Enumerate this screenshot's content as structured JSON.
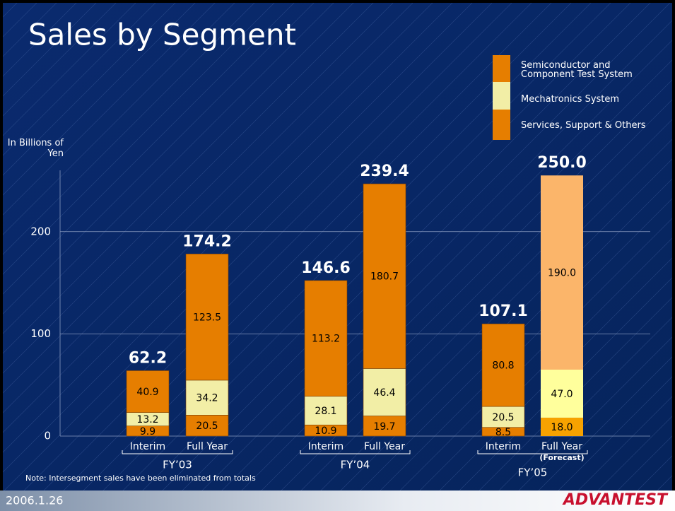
{
  "chart_data": {
    "type": "bar",
    "stacked": true,
    "title": "Sales by Segment",
    "ylabel": "In Billions of Yen",
    "categories": [
      "Interim",
      "Full Year",
      "Interim",
      "Full Year",
      "Interim",
      "Full Year"
    ],
    "groups": [
      "FY’03",
      "FY’04",
      "FY’05"
    ],
    "forecast_label": "(Forecast)",
    "series": [
      {
        "name": "Services, Support & Others",
        "color": "#e67e00",
        "forecast_color": "#f7a200",
        "values": [
          9.9,
          20.5,
          10.9,
          19.7,
          8.5,
          18.0
        ],
        "value_labels": [
          "9.9",
          "20.5",
          "10.9",
          "19.7",
          "8.5",
          "18.0"
        ]
      },
      {
        "name": "Mechatronics System",
        "color": "#f2eea6",
        "forecast_color": "#ffff9c",
        "values": [
          13.2,
          34.2,
          28.1,
          46.4,
          20.5,
          47.0
        ],
        "value_labels": [
          "13.2",
          "34.2",
          "28.1",
          "46.4",
          "20.5",
          "47.0"
        ]
      },
      {
        "name": "Semiconductor and Component Test System",
        "color": "#e67e00",
        "forecast_color": "#fbb56a",
        "values": [
          40.9,
          123.5,
          113.2,
          180.7,
          80.8,
          190.0
        ],
        "value_labels": [
          "40.9",
          "123.5",
          "113.2",
          "180.7",
          "80.8",
          "190.0"
        ]
      }
    ],
    "totals": {
      "values": [
        62.2,
        174.2,
        146.6,
        239.4,
        107.1,
        250.0
      ],
      "value_labels": [
        "62.2",
        "174.2",
        "146.6",
        "239.4",
        "107.1",
        "250.0"
      ]
    },
    "ylim": [
      0,
      260
    ],
    "yticks": [
      0,
      100,
      200
    ],
    "grid": true,
    "note": "Note: Intersegment sales have been eliminated from totals"
  },
  "footer": {
    "date": "2006.1.26",
    "logo": "ADVANTEST"
  }
}
